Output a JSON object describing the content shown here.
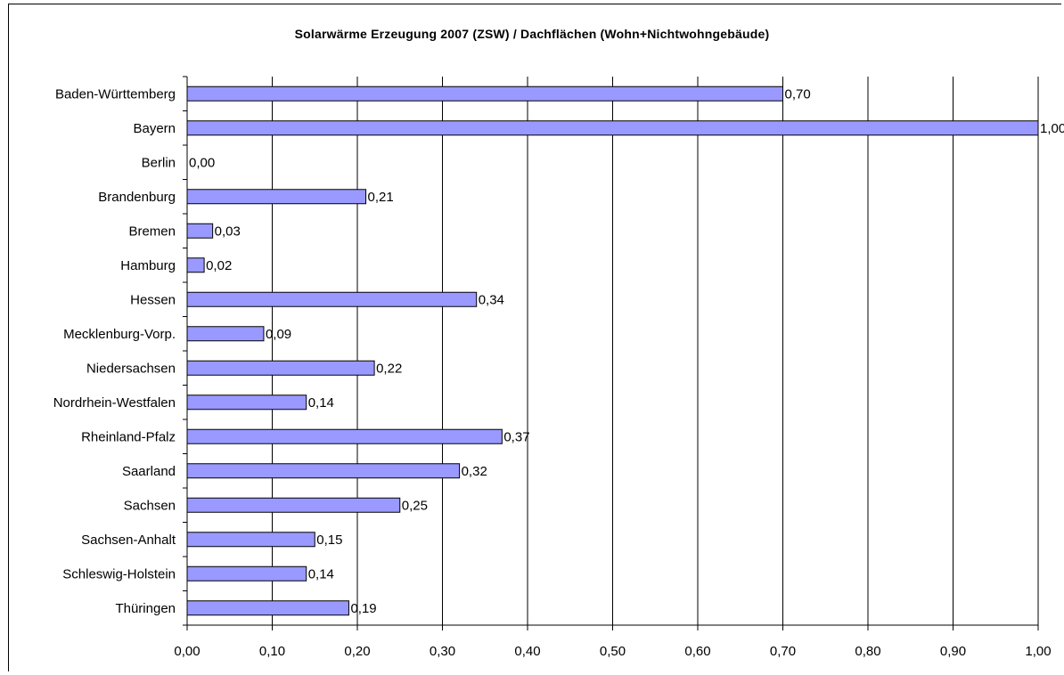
{
  "chart_data": {
    "type": "bar",
    "orientation": "horizontal",
    "title": "Solarwärme Erzeugung 2007 (ZSW) / Dachflächen (Wohn+Nichtwohngebäude)",
    "xlabel": "",
    "ylabel": "",
    "categories": [
      "Baden-Württemberg",
      "Bayern",
      "Berlin",
      "Brandenburg",
      "Bremen",
      "Hamburg",
      "Hessen",
      "Mecklenburg-Vorp.",
      "Niedersachsen",
      "Nordrhein-Westfalen",
      "Rheinland-Pfalz",
      "Saarland",
      "Sachsen",
      "Sachsen-Anhalt",
      "Schleswig-Holstein",
      "Thüringen"
    ],
    "values": [
      0.7,
      1.0,
      0.0,
      0.21,
      0.03,
      0.02,
      0.34,
      0.09,
      0.22,
      0.14,
      0.37,
      0.32,
      0.25,
      0.15,
      0.14,
      0.19
    ],
    "data_labels": [
      "0,70",
      "1,00",
      "0,00",
      "0,21",
      "0,03",
      "0,02",
      "0,34",
      "0,09",
      "0,22",
      "0,14",
      "0,37",
      "0,32",
      "0,25",
      "0,15",
      "0,14",
      "0,19"
    ],
    "xlim": [
      0,
      1
    ],
    "xticks": [
      0,
      0.1,
      0.2,
      0.3,
      0.4,
      0.5,
      0.6,
      0.7,
      0.8,
      0.9,
      1.0
    ],
    "xtick_labels": [
      "0,00",
      "0,10",
      "0,20",
      "0,30",
      "0,40",
      "0,50",
      "0,60",
      "0,70",
      "0,80",
      "0,90",
      "1,00"
    ],
    "grid": "vertical",
    "legend": "none",
    "bar_color": "#9999ff",
    "bar_border": "#000000"
  }
}
